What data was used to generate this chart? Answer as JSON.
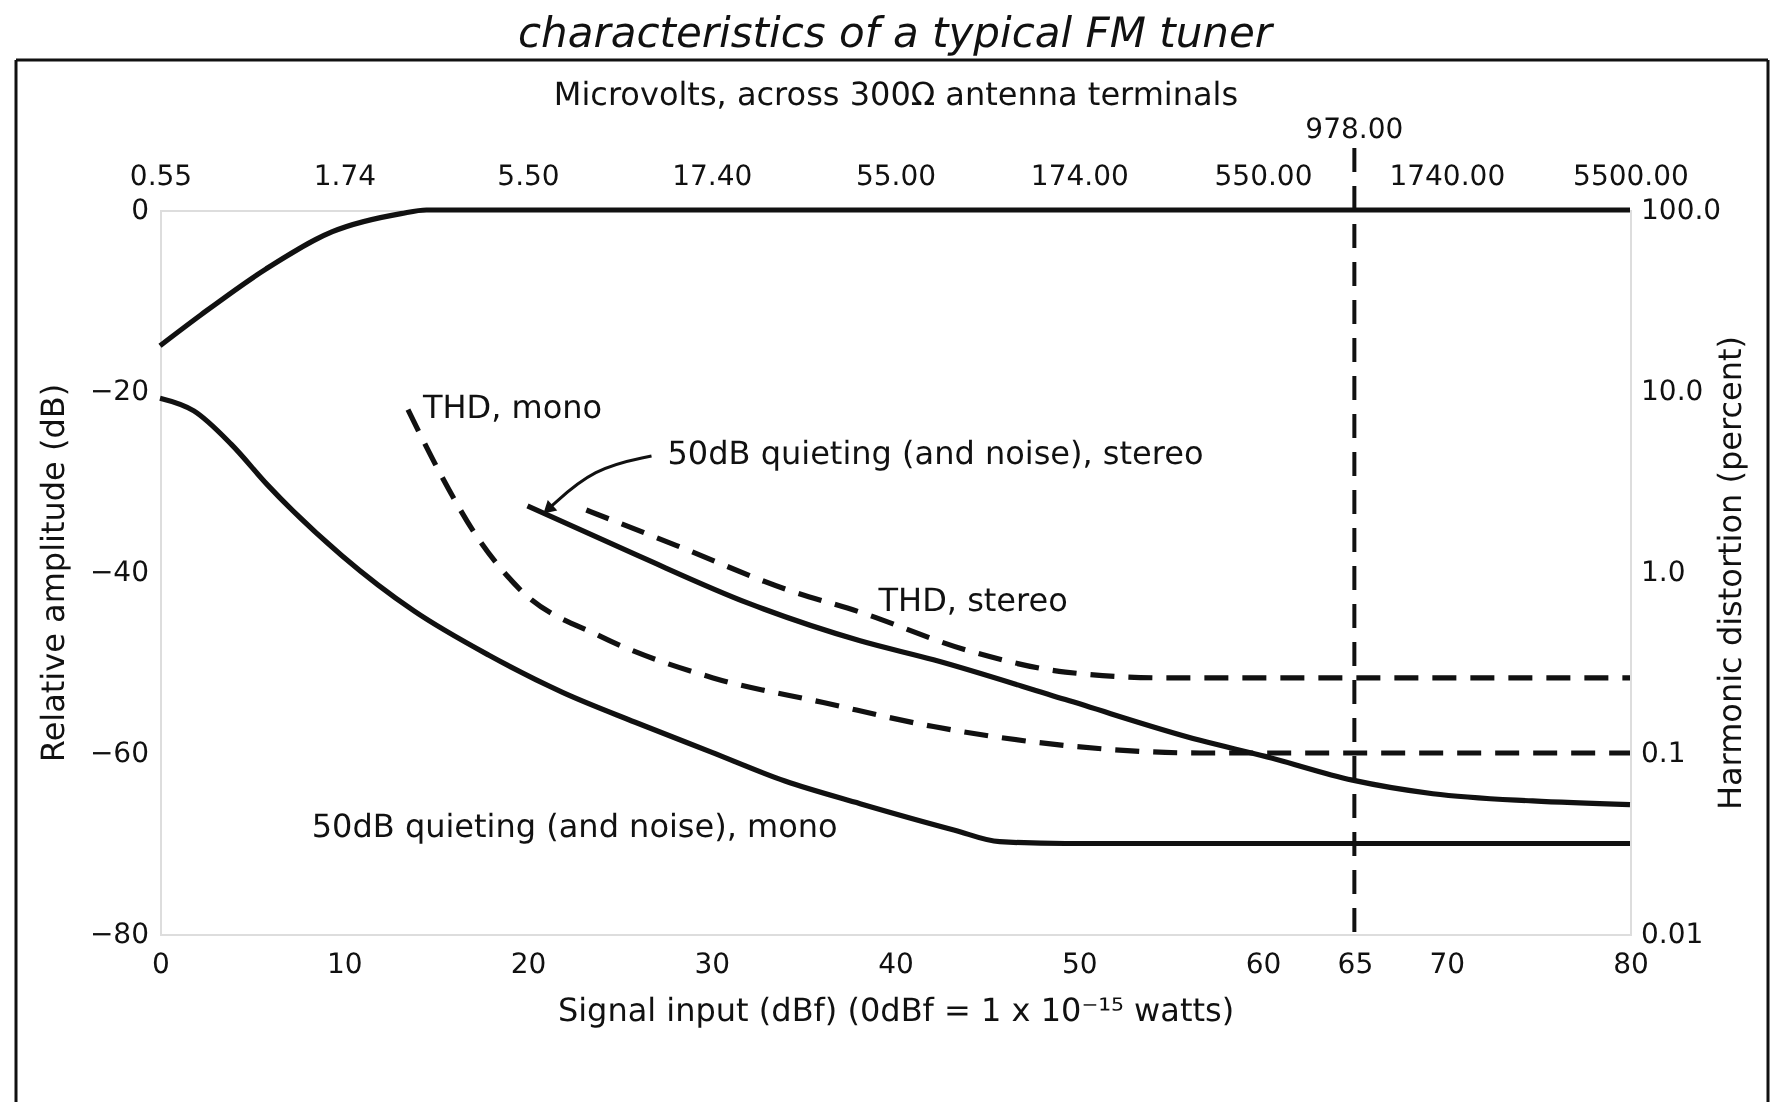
{
  "chart_data": {
    "type": "line",
    "title": "characteristics of a typical FM tuner",
    "xlabel": "Microvolts, across 300Ω antenna terminals",
    "x2label": "Signal input (dBf) (0dBf = 1 x 10⁻¹⁵ watts)",
    "ylabel": "Harmonic distortion (percent)",
    "y2label": "Relative amplitude (dB)",
    "xlim": [
      0.55,
      5500
    ],
    "xticks": [
      0.55,
      1.74,
      {
        "value": 5.5,
        "label": "5.50"
      },
      {
        "value": 17.4,
        "label": "17.40"
      },
      {
        "value": 55,
        "label": "55.00"
      },
      {
        "value": 174,
        "label": "174.00"
      },
      {
        "value": 550,
        "label": "550.00"
      },
      {
        "value": 1740,
        "label": "1740.00"
      },
      {
        "value": 5500,
        "label": "5500.00"
      }
    ],
    "x2lim": [
      0,
      80
    ],
    "x2ticks": [
      0,
      10,
      20,
      30,
      40,
      50,
      60,
      65,
      70,
      80
    ],
    "ylim": [
      0.01,
      100
    ],
    "yticks": [
      {
        "value": 100,
        "label": "100.0"
      },
      {
        "value": 10,
        "label": "10.0"
      },
      {
        "value": 1,
        "label": "1.0"
      },
      0.1,
      0.01
    ],
    "y2lim": [
      -80,
      0
    ],
    "y2ticks": [
      0,
      -20,
      -40,
      -60,
      -80
    ],
    "log": "xy",
    "ref_lines": [
      {
        "axis": "x",
        "value": 978,
        "label": "978.00",
        "line_style": "dashed",
        "color": "#111111"
      }
    ],
    "series": [
      {
        "color": "#111111",
        "line_style": "solid",
        "axis": "y2",
        "x": [
          0.55,
          0.71,
          1.07,
          1.62,
          2.49,
          2.92,
          5500
        ],
        "values": [
          -15,
          -11.6,
          -6.5,
          -2.4,
          -0.4,
          0,
          0
        ]
      },
      {
        "name": "50dB quieting (and noise), mono",
        "color": "#111111",
        "line_style": "solid",
        "axis": "y2",
        "x": [
          0.55,
          0.68,
          0.86,
          1.08,
          1.72,
          2.7,
          4.32,
          6.85,
          10.8,
          17.4,
          27.6,
          44.2,
          79.5,
          106,
          160,
          5500
        ],
        "values": [
          -20.8,
          -22.2,
          -25.9,
          -30.4,
          -38.2,
          -44.3,
          -49.2,
          -53.3,
          -56.6,
          -59.9,
          -63.1,
          -65.6,
          -68.5,
          -69.8,
          -70,
          -70
        ]
      },
      {
        "name": "50dB quieting (and noise), stereo",
        "color": "#111111",
        "line_style": "solid",
        "axis": "y2",
        "x": [
          5.5,
          11,
          22.1,
          44.2,
          70,
          160,
          372,
          563,
          967,
          1600,
          2990,
          5500
        ],
        "values": [
          -32.7,
          -38.2,
          -43.5,
          -47.6,
          -49.7,
          -54.1,
          -58.6,
          -60.4,
          -63,
          -64.5,
          -65.3,
          -65.7
        ]
      },
      {
        "name": "THD, mono",
        "color": "#111111",
        "line_style": "dashed",
        "x": [
          2.6,
          3.16,
          3.98,
          5.25,
          8.72,
          17.6,
          35.1,
          70,
          160,
          372,
          5500
        ],
        "values": [
          7.9,
          3.6,
          1.6,
          0.8,
          0.44,
          0.26,
          0.19,
          0.14,
          0.11,
          0.1,
          0.1
        ]
      },
      {
        "name": "THD, stereo",
        "color": "#111111",
        "line_style": "dashed",
        "x": [
          7.95,
          14,
          27.9,
          44.2,
          86.2,
          160,
          302,
          5500
        ],
        "values": [
          2.2,
          1.4,
          0.8,
          0.6,
          0.37,
          0.28,
          0.26,
          0.26
        ]
      }
    ]
  }
}
